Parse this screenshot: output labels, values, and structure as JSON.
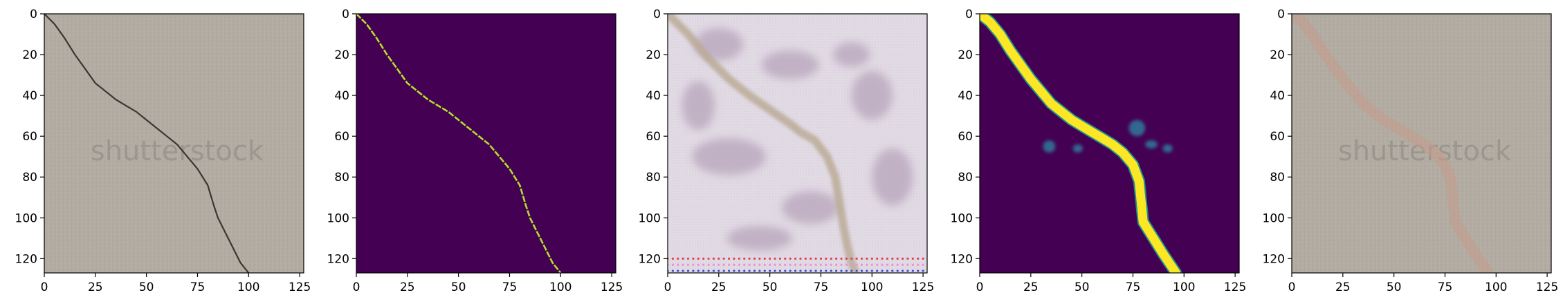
{
  "figure": {
    "panel_count": 5
  },
  "chart_data": [
    {
      "type": "heatmap",
      "panel": "input-image",
      "content": "grayscale concrete photo with dark diagonal crack and faint watermark",
      "watermark_text": "shutterstock",
      "colormap": "rgb",
      "title": "",
      "xlabel": "",
      "ylabel": "",
      "xlim": [
        0,
        127
      ],
      "ylim": [
        127,
        0
      ],
      "xticks": [
        0,
        25,
        50,
        75,
        100,
        125
      ],
      "yticks": [
        0,
        20,
        40,
        60,
        80,
        100,
        120
      ],
      "crack_path": [
        [
          0,
          0
        ],
        [
          5,
          5
        ],
        [
          10,
          12
        ],
        [
          15,
          20
        ],
        [
          20,
          27
        ],
        [
          25,
          34
        ],
        [
          30,
          38
        ],
        [
          35,
          42
        ],
        [
          40,
          45
        ],
        [
          45,
          48
        ],
        [
          50,
          52
        ],
        [
          55,
          56
        ],
        [
          60,
          60
        ],
        [
          65,
          64
        ],
        [
          70,
          70
        ],
        [
          75,
          76
        ],
        [
          80,
          84
        ],
        [
          83,
          94
        ],
        [
          85,
          100
        ],
        [
          88,
          106
        ],
        [
          92,
          114
        ],
        [
          96,
          122
        ],
        [
          100,
          127
        ]
      ],
      "colors": {
        "background": "#b3ada3",
        "crack": "#3a3733"
      }
    },
    {
      "type": "heatmap",
      "panel": "ground-truth-mask",
      "content": "binary crack mask",
      "colormap": "viridis",
      "title": "",
      "xlabel": "",
      "ylabel": "",
      "xlim": [
        0,
        127
      ],
      "ylim": [
        127,
        0
      ],
      "xticks": [
        0,
        25,
        50,
        75,
        100,
        125
      ],
      "yticks": [
        0,
        20,
        40,
        60,
        80,
        100,
        120
      ],
      "crack_path": [
        [
          0,
          0
        ],
        [
          5,
          5
        ],
        [
          10,
          12
        ],
        [
          15,
          20
        ],
        [
          20,
          27
        ],
        [
          25,
          34
        ],
        [
          30,
          38
        ],
        [
          35,
          42
        ],
        [
          40,
          45
        ],
        [
          45,
          48
        ],
        [
          50,
          52
        ],
        [
          55,
          56
        ],
        [
          60,
          60
        ],
        [
          65,
          64
        ],
        [
          70,
          70
        ],
        [
          75,
          76
        ],
        [
          80,
          84
        ],
        [
          83,
          94
        ],
        [
          85,
          100
        ],
        [
          88,
          106
        ],
        [
          92,
          114
        ],
        [
          96,
          122
        ],
        [
          100,
          127
        ]
      ],
      "colors": {
        "background": "#440154",
        "crack": "#b5de2b"
      }
    },
    {
      "type": "heatmap",
      "panel": "generated-image",
      "content": "noisy pastel reconstruction with checkerboard artifacts and colored dot rows at bottom",
      "colormap": "rgb",
      "title": "",
      "xlabel": "",
      "ylabel": "",
      "xlim": [
        0,
        127
      ],
      "ylim": [
        127,
        0
      ],
      "xticks": [
        0,
        25,
        50,
        75,
        100,
        125
      ],
      "yticks": [
        0,
        20,
        40,
        60,
        80,
        100,
        120
      ],
      "crack_path": [
        [
          0,
          0
        ],
        [
          10,
          10
        ],
        [
          20,
          22
        ],
        [
          30,
          32
        ],
        [
          40,
          40
        ],
        [
          50,
          47
        ],
        [
          60,
          54
        ],
        [
          65,
          58
        ],
        [
          72,
          62
        ],
        [
          78,
          70
        ],
        [
          82,
          80
        ],
        [
          84,
          92
        ],
        [
          86,
          104
        ],
        [
          88,
          114
        ],
        [
          90,
          122
        ],
        [
          92,
          127
        ]
      ],
      "colors": {
        "background": "#e4dde6",
        "blotch": "#b7a3ba",
        "crack": "#b9a993",
        "dot_red": "#e0405a",
        "dot_blue": "#3a4fd8",
        "dot_pink": "#f08fd0"
      }
    },
    {
      "type": "heatmap",
      "panel": "predicted-mask",
      "content": "predicted crack probability map, thick bright band with faint spots",
      "colormap": "viridis",
      "title": "",
      "xlabel": "",
      "ylabel": "",
      "xlim": [
        0,
        127
      ],
      "ylim": [
        127,
        0
      ],
      "xticks": [
        0,
        25,
        50,
        75,
        100,
        125
      ],
      "yticks": [
        0,
        20,
        40,
        60,
        80,
        100,
        120
      ],
      "crack_path": [
        [
          0,
          0
        ],
        [
          5,
          4
        ],
        [
          10,
          10
        ],
        [
          15,
          18
        ],
        [
          20,
          25
        ],
        [
          25,
          32
        ],
        [
          30,
          38
        ],
        [
          35,
          44
        ],
        [
          40,
          48
        ],
        [
          45,
          52
        ],
        [
          50,
          55
        ],
        [
          55,
          58
        ],
        [
          60,
          61
        ],
        [
          65,
          64
        ],
        [
          70,
          68
        ],
        [
          75,
          74
        ],
        [
          78,
          82
        ],
        [
          79,
          92
        ],
        [
          80,
          102
        ],
        [
          85,
          110
        ],
        [
          90,
          118
        ],
        [
          94,
          124
        ],
        [
          96,
          127
        ]
      ],
      "colors": {
        "background": "#440154",
        "edge": "#21918c",
        "core": "#fde725",
        "faint": "#31688e"
      }
    },
    {
      "type": "heatmap",
      "panel": "overlay",
      "content": "input photo with semi-transparent reddish predicted crack overlay",
      "watermark_text": "shutterstock",
      "colormap": "rgb",
      "title": "",
      "xlabel": "",
      "ylabel": "",
      "xlim": [
        0,
        127
      ],
      "ylim": [
        127,
        0
      ],
      "xticks": [
        0,
        25,
        50,
        75,
        100,
        125
      ],
      "yticks": [
        0,
        20,
        40,
        60,
        80,
        100,
        120
      ],
      "crack_path": [
        [
          0,
          0
        ],
        [
          5,
          4
        ],
        [
          10,
          10
        ],
        [
          15,
          18
        ],
        [
          20,
          25
        ],
        [
          25,
          32
        ],
        [
          30,
          38
        ],
        [
          35,
          44
        ],
        [
          40,
          48
        ],
        [
          45,
          52
        ],
        [
          50,
          55
        ],
        [
          55,
          58
        ],
        [
          60,
          61
        ],
        [
          65,
          64
        ],
        [
          70,
          68
        ],
        [
          75,
          74
        ],
        [
          78,
          82
        ],
        [
          79,
          92
        ],
        [
          80,
          102
        ],
        [
          85,
          110
        ],
        [
          90,
          118
        ],
        [
          94,
          124
        ],
        [
          96,
          127
        ]
      ],
      "colors": {
        "background": "#b3ada3",
        "overlay": "#c79a8c"
      }
    }
  ]
}
